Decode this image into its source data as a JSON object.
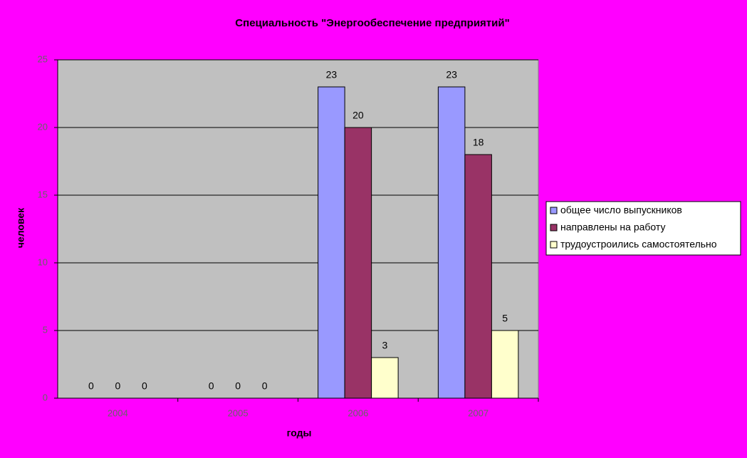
{
  "chart_data": {
    "type": "bar",
    "title": "Специальность \"Энергообеспечение предприятий\"",
    "x_label": "годы",
    "y_label": "человек",
    "categories": [
      "2004",
      "2005",
      "2006",
      "2007"
    ],
    "series": [
      {
        "name": "общее число выпускников",
        "color": "#9999ff",
        "values": [
          0,
          0,
          23,
          23
        ]
      },
      {
        "name": "направлены на работу",
        "color": "#993366",
        "values": [
          0,
          0,
          20,
          18
        ]
      },
      {
        "name": "трудоустроились самостоятельно",
        "color": "#ffffcc",
        "values": [
          0,
          0,
          3,
          5
        ]
      }
    ],
    "ylim": [
      0,
      25
    ],
    "yticks": [
      0,
      5,
      10,
      15,
      20,
      25
    ],
    "grid": true,
    "legend": "right"
  }
}
